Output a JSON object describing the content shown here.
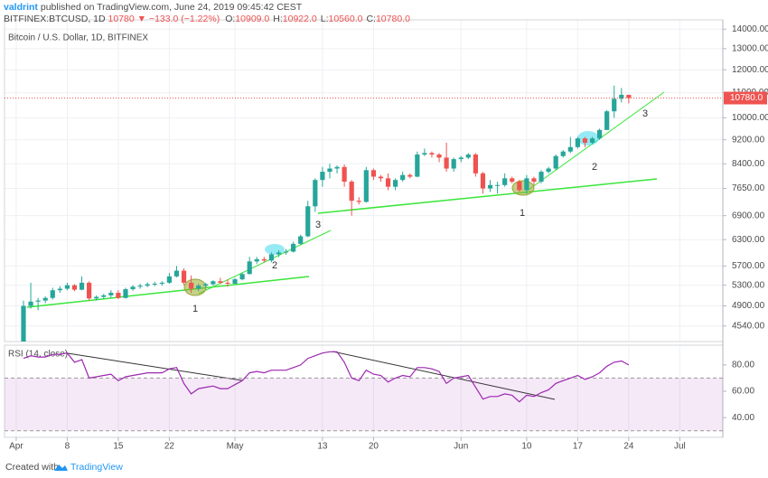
{
  "header": {
    "author": "valdrint",
    "published": "published on TradingView.com, June 24, 2019 09:45:42 CEST",
    "symbol": "BITFINEX:BTCUSD, 1D",
    "price": "10780",
    "change": "▼ −133.0 (−1.22%)",
    "ohlc": [
      {
        "key": "O:",
        "val": "10909.0"
      },
      {
        "key": "H:",
        "val": "10922.0"
      },
      {
        "key": "L:",
        "val": "10560.0"
      },
      {
        "key": "C:",
        "val": "10780.0"
      }
    ],
    "footer": "Created with",
    "brand": "TradingView"
  },
  "chart_data": [
    {
      "type": "candlestick",
      "title": "Bitcoin / U.S. Dollar, 1D, BITFINEX",
      "x": [
        1,
        2,
        3,
        4,
        5,
        6,
        7,
        8,
        9,
        10,
        11,
        12,
        13,
        14,
        15,
        16,
        17,
        18,
        19,
        20,
        21,
        22,
        23,
        24,
        25,
        26,
        27,
        28,
        29,
        30,
        31,
        32,
        33,
        34,
        35,
        36,
        37,
        38,
        39,
        40,
        41,
        42,
        43,
        44,
        45,
        46,
        47,
        48,
        49,
        50,
        51,
        52,
        53,
        54,
        55,
        56,
        57,
        58,
        59,
        60,
        61,
        62,
        63,
        64,
        65,
        66,
        67,
        68,
        69,
        70,
        71,
        72,
        73,
        74,
        75,
        76,
        77,
        78,
        79,
        80,
        81,
        82,
        83,
        84
      ],
      "open": [
        4150,
        4900,
        4980,
        5000,
        5050,
        5200,
        5230,
        5300,
        5210,
        5350,
        5040,
        5070,
        5100,
        5150,
        5050,
        5220,
        5270,
        5290,
        5320,
        5330,
        5350,
        5480,
        5600,
        5350,
        5230,
        5290,
        5320,
        5380,
        5350,
        5330,
        5420,
        5530,
        5800,
        5850,
        5820,
        5960,
        6000,
        6020,
        6200,
        6380,
        7150,
        7900,
        8150,
        8250,
        8300,
        7850,
        7300,
        7270,
        8200,
        8000,
        7950,
        7700,
        7900,
        8050,
        8000,
        8700,
        8750,
        8700,
        8600,
        8250,
        8550,
        8600,
        8700,
        8100,
        7650,
        7750,
        7750,
        7950,
        7850,
        7600,
        7950,
        7850,
        8150,
        8250,
        8650,
        8800,
        8950,
        9250,
        9100,
        9250,
        9550,
        10250,
        10750,
        10909
      ],
      "high": [
        5000,
        5350,
        5050,
        5080,
        5250,
        5280,
        5350,
        5320,
        5480,
        5380,
        5100,
        5130,
        5200,
        5200,
        5250,
        5300,
        5330,
        5360,
        5370,
        5380,
        5550,
        5700,
        5650,
        5500,
        5330,
        5350,
        5400,
        5450,
        5420,
        5450,
        5550,
        5900,
        5900,
        5900,
        6000,
        6050,
        6080,
        6250,
        6420,
        7300,
        7950,
        8300,
        8400,
        8350,
        8380,
        7900,
        7400,
        8300,
        8250,
        8050,
        8100,
        7950,
        8150,
        8100,
        8800,
        8900,
        8800,
        8750,
        9100,
        8600,
        8650,
        8750,
        8750,
        8150,
        7900,
        7850,
        8100,
        8000,
        7900,
        8050,
        8000,
        8200,
        8300,
        8700,
        8850,
        9300,
        9300,
        9300,
        9300,
        9600,
        10300,
        11300,
        11200,
        10922
      ],
      "low": [
        4150,
        4850,
        4820,
        4950,
        5020,
        5150,
        5200,
        5180,
        5200,
        5000,
        5000,
        5030,
        5050,
        5030,
        5040,
        5190,
        5230,
        5260,
        5280,
        5290,
        5330,
        5460,
        5300,
        5150,
        5180,
        5250,
        5290,
        5320,
        5270,
        5320,
        5400,
        5520,
        5750,
        5780,
        5780,
        5900,
        5950,
        6000,
        6180,
        6360,
        7000,
        7700,
        7950,
        8100,
        7700,
        6900,
        7200,
        7250,
        7900,
        7850,
        7600,
        7600,
        7850,
        7950,
        7980,
        8650,
        8600,
        8450,
        8150,
        8150,
        8450,
        8550,
        8000,
        7500,
        7550,
        7500,
        7700,
        7800,
        7550,
        7500,
        7750,
        7800,
        8100,
        8200,
        8600,
        8750,
        8900,
        8950,
        9050,
        9200,
        9550,
        10000,
        10600,
        10560
      ],
      "close": [
        4900,
        4980,
        5000,
        5050,
        5200,
        5230,
        5300,
        5210,
        5350,
        5040,
        5070,
        5100,
        5150,
        5050,
        5220,
        5270,
        5290,
        5320,
        5330,
        5350,
        5480,
        5600,
        5350,
        5230,
        5290,
        5320,
        5380,
        5350,
        5330,
        5420,
        5530,
        5800,
        5850,
        5820,
        5960,
        6000,
        6020,
        6200,
        6380,
        7150,
        7900,
        8150,
        8250,
        8300,
        7850,
        7300,
        7270,
        8200,
        8000,
        7950,
        7700,
        7900,
        8050,
        8000,
        8700,
        8750,
        8700,
        8600,
        8250,
        8550,
        8600,
        8700,
        8100,
        7650,
        7750,
        7750,
        7950,
        7850,
        7600,
        7950,
        7850,
        8150,
        8250,
        8650,
        8800,
        8950,
        9250,
        9100,
        9250,
        9550,
        10250,
        10750,
        10913,
        10780
      ],
      "up_color": "#26a69a",
      "down_color": "#ef5350",
      "log_scale": true,
      "grid": true,
      "xlim": [
        -1.6,
        96.9
      ],
      "xticks": [
        {
          "value": 0,
          "label": "Apr"
        },
        {
          "value": 7,
          "label": "8"
        },
        {
          "value": 14,
          "label": "15"
        },
        {
          "value": 21,
          "label": "22"
        },
        {
          "value": 30,
          "label": "May"
        },
        {
          "value": 42,
          "label": "13"
        },
        {
          "value": 49,
          "label": "20"
        },
        {
          "value": 61,
          "label": "Jun"
        },
        {
          "value": 70,
          "label": "10"
        },
        {
          "value": 77,
          "label": "17"
        },
        {
          "value": 84,
          "label": "24"
        },
        {
          "value": 91,
          "label": "Jul"
        }
      ],
      "ylim": [
        4280,
        14500
      ],
      "yticks": [
        {
          "value": 4540,
          "label": "4540.00"
        },
        {
          "value": 4900,
          "label": "4900.00"
        },
        {
          "value": 5300,
          "label": "5300.00"
        },
        {
          "value": 5700,
          "label": "5700.00"
        },
        {
          "value": 6300,
          "label": "6300.00"
        },
        {
          "value": 6900,
          "label": "6900.00"
        },
        {
          "value": 7650,
          "label": "7650.00"
        },
        {
          "value": 8400,
          "label": "8400.00"
        },
        {
          "value": 9200,
          "label": "9200.00"
        },
        {
          "value": 10000,
          "label": "10000.00"
        },
        {
          "value": 11000,
          "label": "11000.00"
        },
        {
          "value": 12000,
          "label": "12000.00"
        },
        {
          "value": 13000,
          "label": "13000.00"
        },
        {
          "value": 14000,
          "label": "14000.00"
        }
      ],
      "last_price": {
        "value": 10780,
        "label": "10780.0"
      },
      "annotations": [
        "1",
        "2",
        "3",
        "1",
        "2",
        "3"
      ]
    },
    {
      "type": "line",
      "title": "RSI (14, close)",
      "x": [
        1,
        2,
        3,
        4,
        5,
        6,
        7,
        8,
        9,
        10,
        11,
        12,
        13,
        14,
        15,
        16,
        17,
        18,
        19,
        20,
        21,
        22,
        23,
        24,
        25,
        26,
        27,
        28,
        29,
        30,
        31,
        32,
        33,
        34,
        35,
        36,
        37,
        38,
        39,
        40,
        41,
        42,
        43,
        44,
        45,
        46,
        47,
        48,
        49,
        50,
        51,
        52,
        53,
        54,
        55,
        56,
        57,
        58,
        59,
        60,
        61,
        62,
        63,
        64,
        65,
        66,
        67,
        68,
        69,
        70,
        71,
        72,
        73,
        74,
        75,
        76,
        77,
        78,
        79,
        80,
        81,
        82,
        83,
        84
      ],
      "series": [
        {
          "color": "#9c27b0",
          "values": [
            85,
            87,
            86,
            86,
            88,
            88,
            89,
            82,
            84,
            70,
            71,
            72,
            73,
            68,
            71,
            72,
            73,
            74,
            74,
            74,
            77,
            78,
            66,
            58,
            62,
            63,
            64,
            62,
            62,
            65,
            68,
            74,
            75,
            74,
            76,
            76,
            76,
            78,
            80,
            85,
            87,
            89,
            90,
            90,
            82,
            70,
            68,
            76,
            73,
            72,
            67,
            70,
            72,
            71,
            78,
            78,
            77,
            75,
            66,
            70,
            71,
            72,
            63,
            54,
            56,
            56,
            58,
            57,
            52,
            57,
            56,
            59,
            61,
            66,
            68,
            70,
            72,
            69,
            71,
            74,
            79,
            82,
            83,
            80
          ]
        }
      ],
      "xlim": [
        -1.6,
        96.9
      ],
      "ylim": [
        25,
        95
      ],
      "yticks": [
        {
          "value": 80,
          "label": "80.00"
        },
        {
          "value": 60,
          "label": "60.00"
        },
        {
          "value": 40,
          "label": "40.00"
        }
      ],
      "band": [
        30,
        70
      ],
      "band_color": "#9c27b0"
    }
  ]
}
